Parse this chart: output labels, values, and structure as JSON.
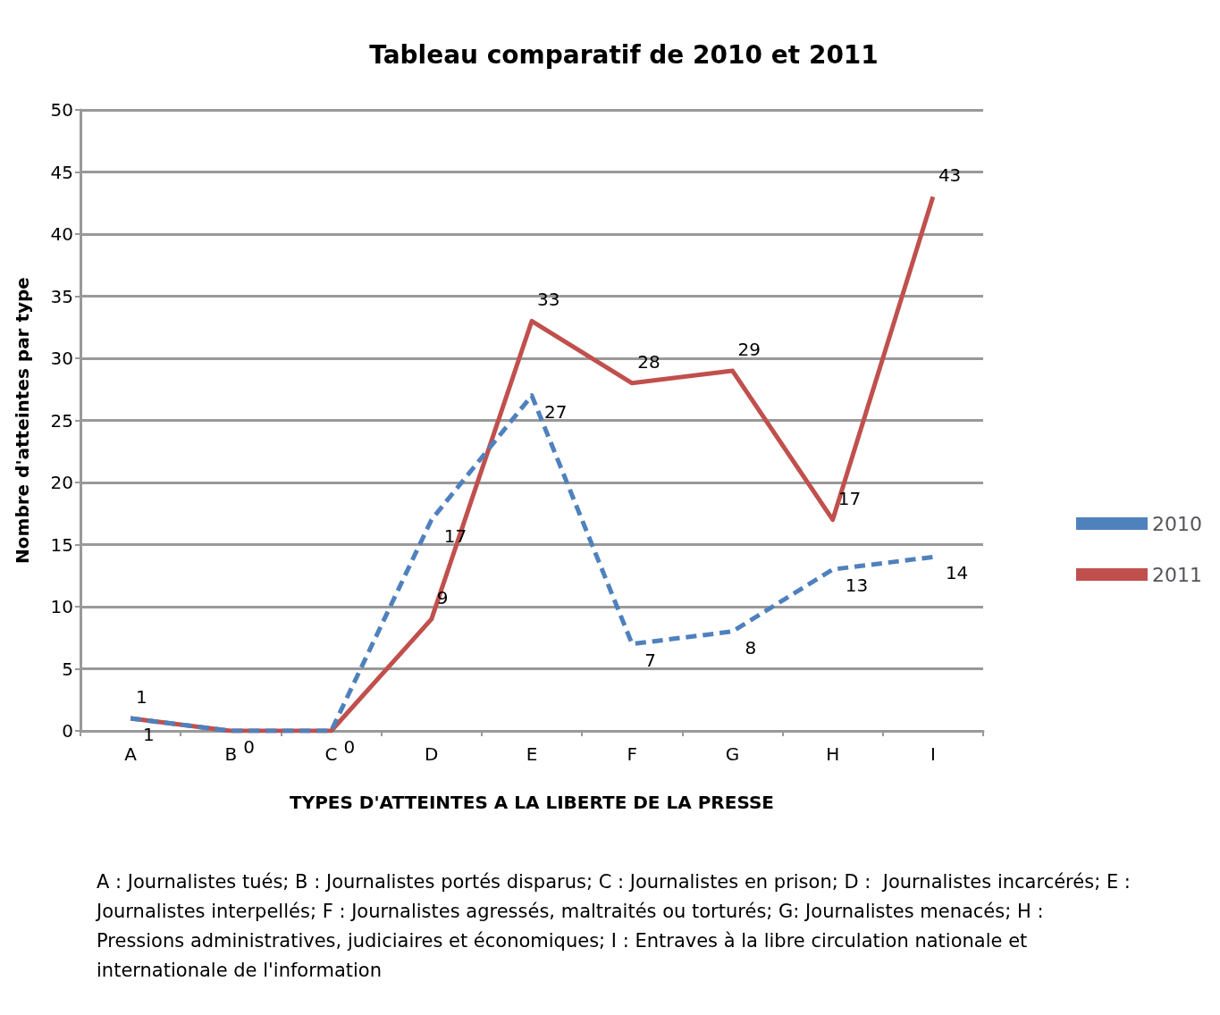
{
  "chart_data": {
    "type": "line",
    "title": "Tableau comparatif de 2010 et 2011",
    "xlabel": "TYPES D'ATTEINTES A LA LIBERTE DE LA PRESSE",
    "ylabel": "Nombre d'atteintes par type",
    "categories": [
      "A",
      "B",
      "C",
      "D",
      "E",
      "F",
      "G",
      "H",
      "I"
    ],
    "series": [
      {
        "name": "2010",
        "color": "#4f81bd",
        "line_style": "dashed",
        "values": [
          1,
          0,
          0,
          17,
          27,
          7,
          8,
          13,
          14
        ],
        "value_labels": [
          "1",
          "0",
          "0",
          "17",
          "27",
          "7",
          "8",
          "13",
          "14"
        ]
      },
      {
        "name": "2011",
        "color": "#c0504d",
        "line_style": "solid",
        "values": [
          1,
          0,
          0,
          9,
          33,
          28,
          29,
          17,
          43
        ],
        "value_labels": [
          "1",
          null,
          null,
          "9",
          "33",
          "28",
          "29",
          "17",
          "43"
        ]
      }
    ],
    "ylim": [
      0,
      50
    ],
    "yticks": [
      0,
      5,
      10,
      15,
      20,
      25,
      30,
      35,
      40,
      45,
      50
    ],
    "grid": "y",
    "legend": "right",
    "marker": "none",
    "annotations": [
      "A : Journalistes tués; B : Journalistes portés disparus; C : Journalistes en prison; D :  Journalistes incarcérés; E : Journalistes interpellés; F : Journalistes agressés, maltraités ou torturés; G: Journalistes menacés; H : Pressions administratives, judiciaires et économiques; I : Entraves à la libre circulation nationale et internationale de l'information"
    ]
  }
}
